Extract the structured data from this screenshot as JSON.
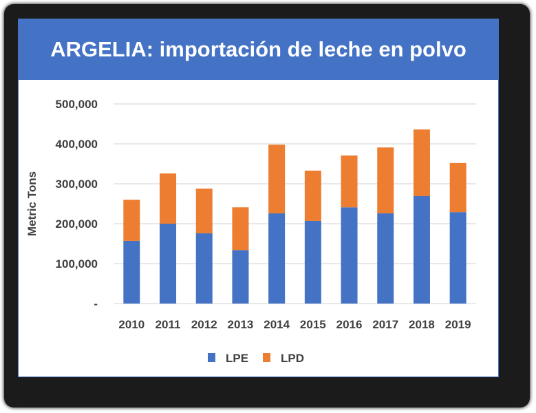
{
  "chart_data": {
    "type": "bar",
    "stacked": true,
    "title": "ARGELIA: importación de leche en polvo",
    "xlabel": "",
    "ylabel": "Metric Tons",
    "ylim": [
      0,
      500000
    ],
    "yticks": [
      0,
      100000,
      200000,
      300000,
      400000,
      500000
    ],
    "ytick_labels": [
      "-",
      "100,000",
      "200,000",
      "300,000",
      "400,000",
      "500,000"
    ],
    "grid": true,
    "legend_position": "bottom",
    "categories": [
      "2010",
      "2011",
      "2012",
      "2013",
      "2014",
      "2015",
      "2016",
      "2017",
      "2018",
      "2019"
    ],
    "series": [
      {
        "name": "LPE",
        "color": "#4472c4",
        "values": [
          157000,
          200000,
          176000,
          134000,
          226000,
          207000,
          241000,
          226000,
          269000,
          229000
        ]
      },
      {
        "name": "LPD",
        "color": "#ed7d31",
        "values": [
          103000,
          126000,
          112000,
          107000,
          172000,
          126000,
          130000,
          165000,
          167000,
          123000
        ]
      }
    ]
  }
}
